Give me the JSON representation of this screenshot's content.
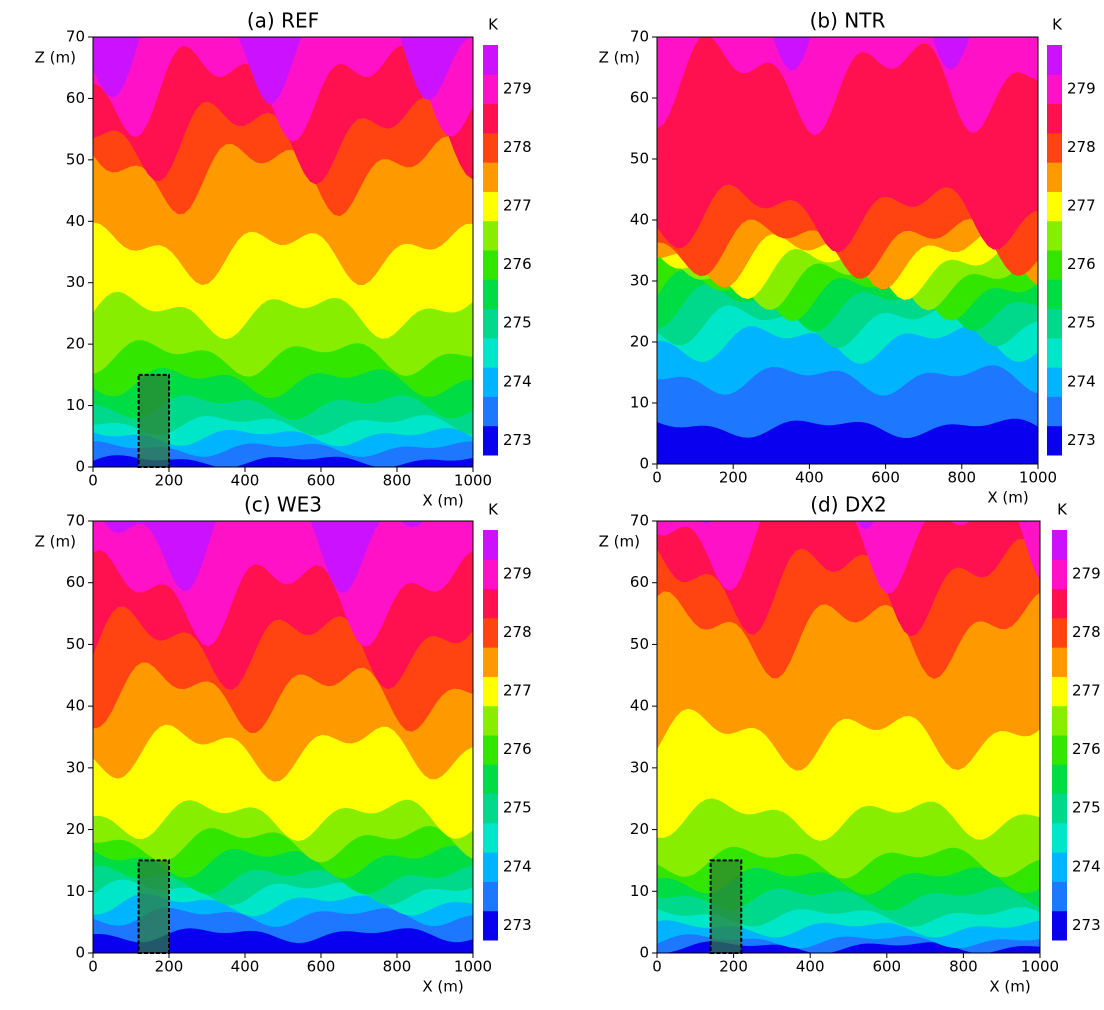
{
  "chart_data": [
    {
      "type": "contour",
      "title": "(a)   REF",
      "xlabel": "X (m)",
      "ylabel": "Z (m)",
      "xlim": [
        0,
        1000
      ],
      "ylim": [
        0,
        70
      ],
      "xticks": [
        0,
        200,
        400,
        600,
        800,
        1000
      ],
      "yticks": [
        0,
        10,
        20,
        30,
        40,
        50,
        60,
        70
      ],
      "boundaries": [
        1,
        3,
        5,
        7,
        10,
        14,
        18,
        25,
        35,
        48,
        54,
        62,
        69
      ],
      "building": {
        "x": [
          120,
          200
        ],
        "z": [
          0,
          15
        ]
      },
      "colorbar": {
        "label": "K",
        "lim": [
          272.75,
          279.75
        ],
        "ticks": [
          273,
          274,
          275,
          276,
          277,
          278,
          279
        ],
        "colors": [
          "#0a00f0",
          "#1e78ff",
          "#00b4ff",
          "#00e6c8",
          "#00d98c",
          "#00dd44",
          "#33e600",
          "#88ee00",
          "#ffff00",
          "#ff9900",
          "#ff4411",
          "#ff1150",
          "#ff11c8",
          "#cc11ff"
        ]
      }
    },
    {
      "type": "contour",
      "title": "(b)   NTR",
      "xlabel": "X (m)",
      "ylabel": "Z (m)",
      "xlim": [
        0,
        1000
      ],
      "ylim": [
        0,
        70
      ],
      "xticks": [
        0,
        200,
        400,
        600,
        800,
        1000
      ],
      "yticks": [
        0,
        10,
        20,
        30,
        40,
        50,
        60,
        70
      ],
      "boundaries": [
        6,
        14,
        20,
        23,
        26,
        28,
        30,
        32,
        34,
        36,
        41,
        63,
        75
      ],
      "colorbar": {
        "label": "K",
        "lim": [
          272.75,
          279.75
        ],
        "ticks": [
          273,
          274,
          275,
          276,
          277,
          278,
          279
        ],
        "colors": [
          "#0a00f0",
          "#1e78ff",
          "#00b4ff",
          "#00e6c8",
          "#00d98c",
          "#00dd44",
          "#33e600",
          "#88ee00",
          "#ffff00",
          "#ff9900",
          "#ff4411",
          "#ff1150",
          "#ff11c8",
          "#cc11ff"
        ]
      }
    },
    {
      "type": "contour",
      "title": "(c)   WE3",
      "xlabel": "X (m)",
      "ylabel": "Z (m)",
      "xlim": [
        0,
        1000
      ],
      "ylim": [
        0,
        70
      ],
      "xticks": [
        0,
        200,
        400,
        600,
        800,
        1000
      ],
      "yticks": [
        0,
        10,
        20,
        30,
        40,
        50,
        60,
        70
      ],
      "boundaries": [
        3,
        6,
        8,
        10,
        12,
        15,
        18,
        22,
        33,
        42,
        50,
        58,
        68
      ],
      "building": {
        "x": [
          120,
          200
        ],
        "z": [
          0,
          15
        ]
      },
      "colorbar": {
        "label": "K",
        "lim": [
          272.75,
          279.75
        ],
        "ticks": [
          273,
          274,
          275,
          276,
          277,
          278,
          279
        ],
        "colors": [
          "#0a00f0",
          "#1e78ff",
          "#00b4ff",
          "#00e6c8",
          "#00d98c",
          "#00dd44",
          "#33e600",
          "#88ee00",
          "#ffff00",
          "#ff9900",
          "#ff4411",
          "#ff1150",
          "#ff11c8",
          "#cc11ff"
        ]
      }
    },
    {
      "type": "contour",
      "title": "(d)   DX2",
      "xlabel": "X (m)",
      "ylabel": "Z (m)",
      "xlim": [
        0,
        1000
      ],
      "ylim": [
        0,
        70
      ],
      "xticks": [
        0,
        200,
        400,
        600,
        800,
        1000
      ],
      "yticks": [
        0,
        10,
        20,
        30,
        40,
        50,
        60,
        70
      ],
      "boundaries": [
        1,
        2,
        4,
        6,
        9,
        12,
        15,
        22,
        35,
        52,
        60,
        68,
        80
      ],
      "building": {
        "x": [
          140,
          220
        ],
        "z": [
          0,
          15
        ]
      },
      "colorbar": {
        "label": "K",
        "lim": [
          272.75,
          279.75
        ],
        "ticks": [
          273,
          274,
          275,
          276,
          277,
          278,
          279
        ],
        "colors": [
          "#0a00f0",
          "#1e78ff",
          "#00b4ff",
          "#00e6c8",
          "#00d98c",
          "#00dd44",
          "#33e600",
          "#88ee00",
          "#ffff00",
          "#ff9900",
          "#ff4411",
          "#ff1150",
          "#ff11c8",
          "#cc11ff"
        ]
      }
    }
  ]
}
